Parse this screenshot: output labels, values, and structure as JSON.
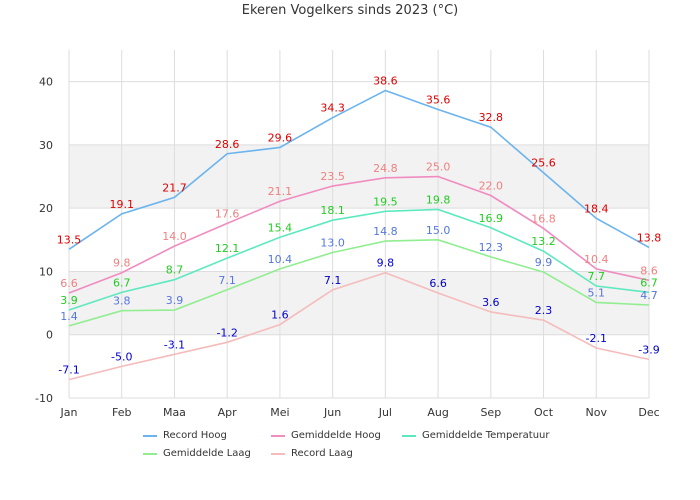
{
  "chart_data": {
    "type": "line",
    "title": "Ekeren Vogelkers sinds 2023 (°C)",
    "xlabel": "",
    "ylabel": "",
    "categories": [
      "Jan",
      "Feb",
      "Maa",
      "Apr",
      "Mei",
      "Jun",
      "Jul",
      "Aug",
      "Sep",
      "Oct",
      "Nov",
      "Dec"
    ],
    "ylim": [
      -10,
      45
    ],
    "yticks": [
      -10,
      0,
      10,
      20,
      30,
      40
    ],
    "shaded_bands": [
      [
        0,
        10
      ],
      [
        20,
        30
      ]
    ],
    "grid": true,
    "legend_position": "bottom",
    "series": [
      {
        "name": "Record Hoog",
        "values": [
          13.5,
          19.1,
          21.7,
          28.6,
          29.6,
          34.3,
          38.6,
          35.6,
          32.8,
          25.6,
          18.4,
          13.8
        ],
        "color": "#6cb4ee",
        "label_color": "#dd0000"
      },
      {
        "name": "Gemiddelde Hoog",
        "values": [
          6.6,
          9.8,
          14.0,
          17.6,
          21.1,
          23.5,
          24.8,
          25.0,
          22.0,
          16.8,
          10.4,
          8.6
        ],
        "color": "#f08cc0",
        "label_color": "#f08080"
      },
      {
        "name": "Gemiddelde Temperatuur",
        "values": [
          3.9,
          6.7,
          8.7,
          12.1,
          15.4,
          18.1,
          19.5,
          19.8,
          16.9,
          13.2,
          7.7,
          6.7
        ],
        "color": "#5ee8c0",
        "label_color": "#22cc22"
      },
      {
        "name": "Gemiddelde Laag",
        "values": [
          1.4,
          3.8,
          3.9,
          7.1,
          10.4,
          13.0,
          14.8,
          15.0,
          12.3,
          9.9,
          5.1,
          4.7
        ],
        "color": "#90ee90",
        "label_color": "#5577dd"
      },
      {
        "name": "Record Laag",
        "values": [
          -7.1,
          -5.0,
          -3.1,
          -1.2,
          1.6,
          7.1,
          9.8,
          6.6,
          3.6,
          2.3,
          -2.1,
          -3.9
        ],
        "color": "#f5bcbc",
        "label_color": "#0000cc"
      }
    ]
  }
}
